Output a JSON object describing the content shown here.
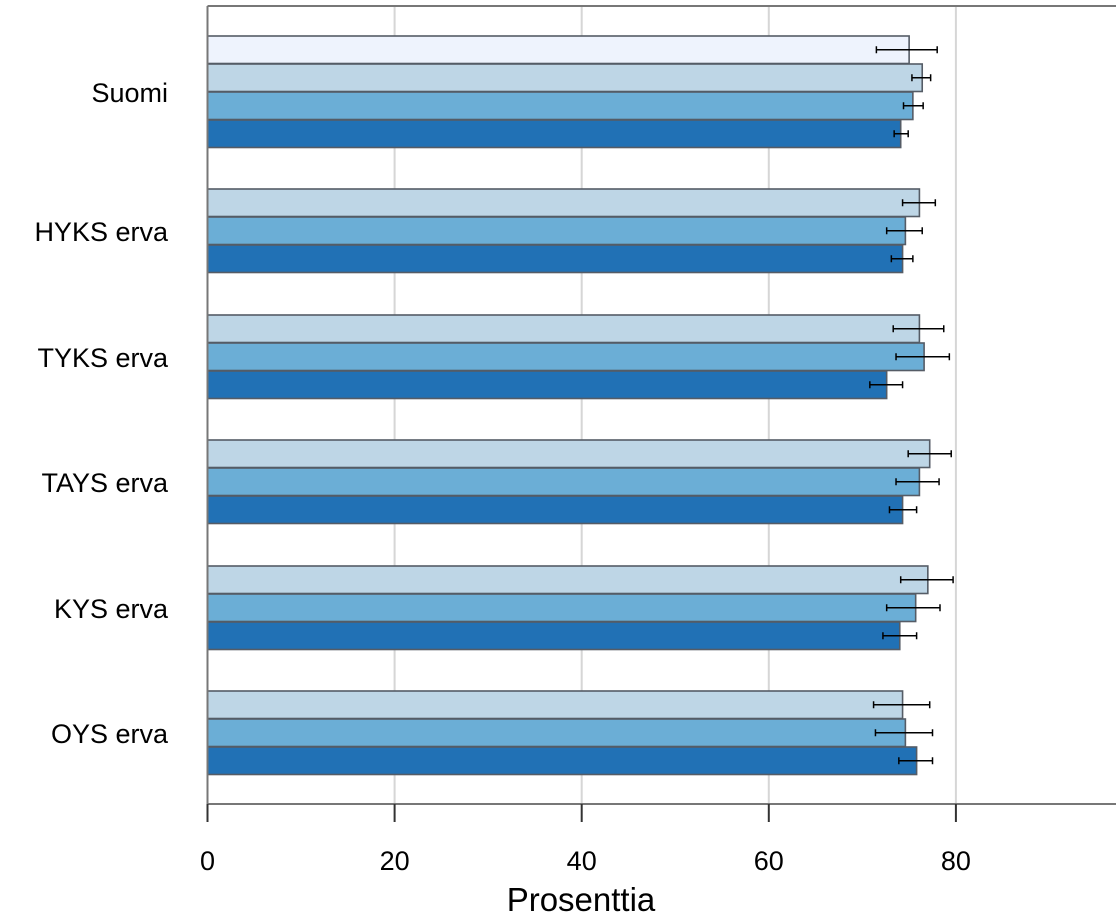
{
  "chart_data": {
    "type": "bar",
    "orientation": "horizontal",
    "xlabel": "Prosenttia",
    "ylabel": "",
    "xlim": [
      0,
      95
    ],
    "xticks": [
      0,
      20,
      40,
      60,
      80
    ],
    "grid": true,
    "categories": [
      "Suomi",
      "HYKS erva",
      "TYKS erva",
      "TAYS erva",
      "KYS erva",
      "OYS erva"
    ],
    "series_colors": [
      "#eef3fd",
      "#bed6e6",
      "#6baed6",
      "#2171b5"
    ],
    "groups": [
      {
        "category": "Suomi",
        "bars": [
          {
            "series": 0,
            "value": 75.0,
            "err_low": 71.5,
            "err_high": 78.0
          },
          {
            "series": 1,
            "value": 76.4,
            "err_low": 75.3,
            "err_high": 77.3
          },
          {
            "series": 2,
            "value": 75.4,
            "err_low": 74.4,
            "err_high": 76.5
          },
          {
            "series": 3,
            "value": 74.1,
            "err_low": 73.4,
            "err_high": 74.9
          }
        ]
      },
      {
        "category": "HYKS erva",
        "bars": [
          {
            "series": 1,
            "value": 76.1,
            "err_low": 74.3,
            "err_high": 77.8
          },
          {
            "series": 2,
            "value": 74.6,
            "err_low": 72.6,
            "err_high": 76.4
          },
          {
            "series": 3,
            "value": 74.3,
            "err_low": 73.1,
            "err_high": 75.4
          }
        ]
      },
      {
        "category": "TYKS erva",
        "bars": [
          {
            "series": 1,
            "value": 76.1,
            "err_low": 73.3,
            "err_high": 78.7
          },
          {
            "series": 2,
            "value": 76.6,
            "err_low": 73.6,
            "err_high": 79.3
          },
          {
            "series": 3,
            "value": 72.6,
            "err_low": 70.8,
            "err_high": 74.3
          }
        ]
      },
      {
        "category": "TAYS erva",
        "bars": [
          {
            "series": 1,
            "value": 77.2,
            "err_low": 74.9,
            "err_high": 79.5
          },
          {
            "series": 2,
            "value": 76.1,
            "err_low": 73.6,
            "err_high": 78.2
          },
          {
            "series": 3,
            "value": 74.3,
            "err_low": 72.9,
            "err_high": 75.8
          }
        ]
      },
      {
        "category": "KYS erva",
        "bars": [
          {
            "series": 1,
            "value": 77.0,
            "err_low": 74.1,
            "err_high": 79.7
          },
          {
            "series": 2,
            "value": 75.7,
            "err_low": 72.6,
            "err_high": 78.3
          },
          {
            "series": 3,
            "value": 74.0,
            "err_low": 72.2,
            "err_high": 75.8
          }
        ]
      },
      {
        "category": "OYS erva",
        "bars": [
          {
            "series": 1,
            "value": 74.3,
            "err_low": 71.2,
            "err_high": 77.2
          },
          {
            "series": 2,
            "value": 74.6,
            "err_low": 71.4,
            "err_high": 77.5
          },
          {
            "series": 3,
            "value": 75.8,
            "err_low": 73.9,
            "err_high": 77.5
          }
        ]
      }
    ]
  }
}
